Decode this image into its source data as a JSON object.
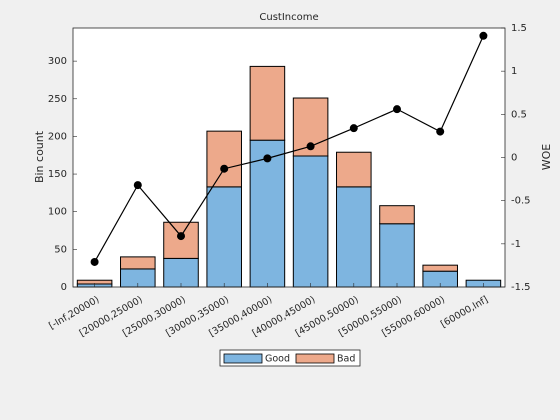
{
  "chart_data": {
    "type": "bar",
    "title": "CustIncome",
    "ylabel": "Bin count",
    "y2label": "WOE",
    "categories": [
      "[-Inf,20000)",
      "[20000,25000)",
      "[25000,30000)",
      "[30000,35000)",
      "[35000,40000)",
      "[40000,45000)",
      "[45000,50000)",
      "[50000,55000)",
      "[55000,60000)",
      "[60000,Inf]"
    ],
    "stacked": true,
    "series": [
      {
        "name": "Good",
        "color": "#7eb5e0",
        "values": [
          4,
          24,
          38,
          133,
          195,
          174,
          133,
          84,
          21,
          9
        ]
      },
      {
        "name": "Bad",
        "color": "#eda98b",
        "values": [
          5,
          16,
          48,
          74,
          98,
          77,
          46,
          24,
          8,
          0
        ]
      },
      {
        "type": "line",
        "axis": "y2",
        "color": "#000000",
        "values": [
          -1.21,
          -0.32,
          -0.91,
          -0.13,
          -0.01,
          0.13,
          0.34,
          0.56,
          0.3,
          1.41
        ]
      }
    ],
    "ylim": [
      0,
      344
    ],
    "yticks": [
      0,
      50,
      100,
      150,
      200,
      250,
      300
    ],
    "y2lim": [
      -1.5,
      1.5
    ],
    "y2ticks": [
      -1.5,
      -1,
      -0.5,
      0,
      0.5,
      1,
      1.5
    ],
    "legend": "bottom"
  }
}
